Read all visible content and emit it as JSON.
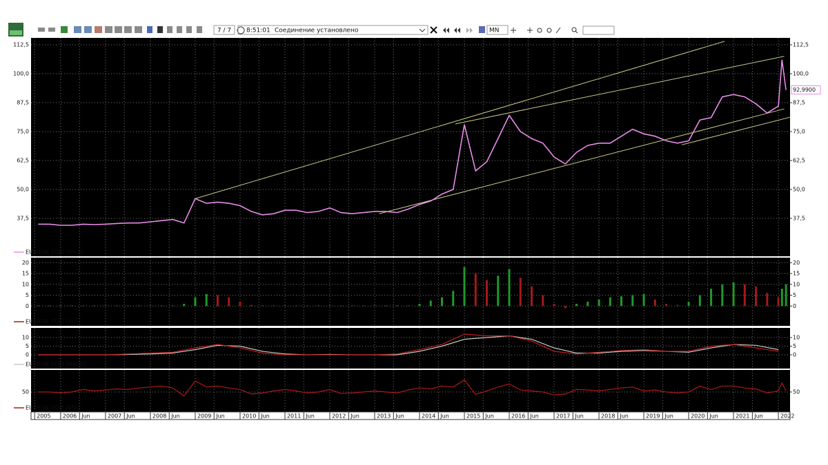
{
  "toolbar": {
    "counter": "7 / 7",
    "time": "8:51:01",
    "status": "Соединение установлено",
    "timeframe": "MN"
  },
  "chart_data": [
    {
      "type": "line",
      "label": "EURRUB_TOM [Price]",
      "x": [
        2005.5,
        2005.75,
        2006,
        2006.25,
        2006.5,
        2006.75,
        2007,
        2007.25,
        2007.5,
        2007.75,
        2008,
        2008.25,
        2008.5,
        2008.75,
        2009,
        2009.25,
        2009.5,
        2009.75,
        2010,
        2010.25,
        2010.5,
        2010.75,
        2011,
        2011.25,
        2011.5,
        2011.75,
        2012,
        2012.25,
        2012.5,
        2012.75,
        2013,
        2013.25,
        2013.5,
        2013.75,
        2014,
        2014.25,
        2014.5,
        2014.75,
        2015,
        2015.25,
        2015.5,
        2015.75,
        2016,
        2016.25,
        2016.5,
        2016.75,
        2017,
        2017.25,
        2017.5,
        2017.75,
        2018,
        2018.25,
        2018.5,
        2018.75,
        2019,
        2019.25,
        2019.5,
        2019.75,
        2020,
        2020.25,
        2020.5,
        2020.75,
        2021,
        2021.25,
        2021.5,
        2021.75,
        2022,
        2022.08,
        2022.17
      ],
      "series": [
        {
          "color": "#e88ce8",
          "values": [
            35,
            35,
            34.5,
            34.5,
            35,
            34.8,
            35,
            35.3,
            35.5,
            35.5,
            36,
            36.5,
            37,
            35.5,
            46,
            44,
            44.5,
            44,
            43,
            40.5,
            39,
            39.5,
            41,
            41,
            40,
            40.5,
            42,
            40,
            39.5,
            40,
            40.5,
            40.5,
            40,
            41.5,
            43.5,
            45,
            48,
            50,
            78,
            58,
            62,
            72,
            82,
            75,
            72,
            70,
            64,
            61,
            66,
            69,
            70,
            70,
            73,
            76,
            74,
            73,
            71,
            70,
            71,
            80,
            81,
            90,
            91,
            90,
            87,
            83,
            86,
            106,
            92.99
          ]
        }
      ],
      "last": {
        "value": 92.99,
        "label": "92,9900"
      },
      "trendlines": [
        {
          "x": [
            2009.0,
            2020.8
          ],
          "y": [
            46,
            114
          ]
        },
        {
          "x": [
            2014.8,
            2022.13
          ],
          "y": [
            78.3,
            107.5
          ]
        },
        {
          "x": [
            2013.1,
            2022.13
          ],
          "y": [
            39.5,
            84.8
          ]
        },
        {
          "x": [
            2019.85,
            2022.26
          ],
          "y": [
            69.3,
            81.2
          ]
        }
      ],
      "trendline_color": "#c8c88a",
      "xlim": [
        2005.34,
        2022.26
      ],
      "xticks": [
        {
          "value": 2005.42,
          "label": "2005"
        },
        2006,
        {
          "value": 2006.42,
          "label": "Jun"
        },
        2007,
        {
          "value": 2007.42,
          "label": "Jun"
        },
        2008,
        {
          "value": 2008.42,
          "label": "Jun"
        },
        2009,
        {
          "value": 2009.42,
          "label": "Jun"
        },
        2010,
        {
          "value": 2010.42,
          "label": "Jun"
        },
        2011,
        {
          "value": 2011.42,
          "label": "Jun"
        },
        2012,
        {
          "value": 2012.42,
          "label": "Jun"
        },
        2013,
        {
          "value": 2013.42,
          "label": "Jun"
        },
        2014,
        {
          "value": 2014.42,
          "label": "Jun"
        },
        2015,
        {
          "value": 2015.42,
          "label": "Jun"
        },
        2016,
        {
          "value": 2016.42,
          "label": "Jun"
        },
        2017,
        {
          "value": 2017.42,
          "label": "Jun"
        },
        2018,
        {
          "value": 2018.42,
          "label": "Jun"
        },
        2019,
        {
          "value": 2019.42,
          "label": "Jun"
        },
        2020,
        {
          "value": 2020.42,
          "label": "Jun"
        },
        2021,
        {
          "value": 2021.42,
          "label": "Jun"
        },
        2022
      ],
      "ylim": [
        26,
        115
      ],
      "yticks": [
        {
          "value": 37.5,
          "label": "37,5"
        },
        {
          "value": 50,
          "label": "50,0"
        },
        {
          "value": 62.5,
          "label": "62,5"
        },
        {
          "value": 75,
          "label": "75,0"
        },
        {
          "value": 87.5,
          "label": "87,5"
        },
        {
          "value": 100,
          "label": "100,0"
        },
        {
          "value": 112.5,
          "label": "112,5"
        }
      ],
      "grid": true
    },
    {
      "type": "bar",
      "label": "EURRUB_TOM [AO]",
      "up_color": "#1f9a2a",
      "down_color": "#a81818",
      "x": [
        2005.5,
        2005.75,
        2006,
        2006.25,
        2006.5,
        2006.75,
        2007,
        2007.25,
        2007.5,
        2007.75,
        2008,
        2008.25,
        2008.5,
        2008.75,
        2009,
        2009.25,
        2009.5,
        2009.75,
        2010,
        2010.25,
        2010.5,
        2010.75,
        2011,
        2011.25,
        2011.5,
        2011.75,
        2012,
        2012.25,
        2012.5,
        2012.75,
        2013,
        2013.25,
        2013.5,
        2013.75,
        2014,
        2014.25,
        2014.5,
        2014.75,
        2015,
        2015.25,
        2015.5,
        2015.75,
        2016,
        2016.25,
        2016.5,
        2016.75,
        2017,
        2017.25,
        2017.5,
        2017.75,
        2018,
        2018.25,
        2018.5,
        2018.75,
        2019,
        2019.25,
        2019.5,
        2019.75,
        2020,
        2020.25,
        2020.5,
        2020.75,
        2021,
        2021.25,
        2021.5,
        2021.75,
        2022,
        2022.08,
        2022.17
      ],
      "values": [
        0.3,
        0.3,
        0.3,
        0.3,
        0.3,
        0.3,
        0.3,
        0.3,
        0.3,
        0.3,
        0.3,
        0.3,
        0.3,
        1,
        4,
        5.5,
        5,
        4,
        2,
        0.5,
        0.3,
        0.3,
        0.3,
        0.3,
        0.3,
        0.3,
        0.3,
        0.3,
        0.3,
        0.3,
        0.3,
        0.3,
        0.3,
        0.3,
        1,
        2.5,
        4,
        7,
        18,
        15,
        12,
        14,
        17,
        13,
        9,
        5,
        1,
        -1,
        1,
        2,
        3,
        4,
        4.5,
        5,
        5.5,
        3,
        1,
        0.5,
        2,
        5,
        8,
        10,
        11,
        10,
        9,
        6,
        4,
        8,
        10
      ],
      "ylim": [
        -5,
        22
      ],
      "yticks": [
        0,
        5,
        10,
        15,
        20
      ],
      "grid": true
    },
    {
      "type": "line",
      "label": "EURRUB_TOM [MACD]",
      "x": [
        2005.5,
        2006,
        2006.5,
        2007,
        2007.5,
        2008,
        2008.5,
        2009,
        2009.5,
        2010,
        2010.5,
        2011,
        2011.5,
        2012,
        2012.5,
        2013,
        2013.5,
        2014,
        2014.5,
        2015,
        2015.5,
        2016,
        2016.5,
        2017,
        2017.5,
        2018,
        2018.5,
        2019,
        2019.5,
        2020,
        2020.5,
        2021,
        2021.5,
        2022
      ],
      "series": [
        {
          "color": "#c8c8c8",
          "values": [
            0,
            0,
            0,
            0,
            0.2,
            0.5,
            1,
            3,
            5.5,
            5,
            2,
            0.5,
            0,
            0.2,
            0,
            0,
            0,
            2,
            5,
            9,
            10,
            11,
            9,
            4,
            1,
            1,
            2,
            2.5,
            2,
            1.5,
            4,
            6,
            5.5,
            3
          ]
        },
        {
          "color": "#c0201c",
          "values": [
            0,
            0,
            0,
            0,
            0.5,
            1,
            1.5,
            4,
            6,
            4,
            1,
            0,
            0,
            0,
            0,
            0,
            0.5,
            3,
            6,
            12,
            11,
            11,
            8,
            2,
            0.5,
            1.5,
            2.5,
            3,
            2,
            2,
            5,
            6,
            4,
            2
          ]
        }
      ],
      "ylim": [
        -6,
        14
      ],
      "yticks": [
        0,
        5,
        10
      ],
      "grid": true
    },
    {
      "type": "line",
      "label": "EURRUB_TOM [RSI]",
      "x": [
        2005.5,
        2005.75,
        2006,
        2006.25,
        2006.5,
        2006.75,
        2007,
        2007.25,
        2007.5,
        2007.75,
        2008,
        2008.25,
        2008.5,
        2008.75,
        2009,
        2009.25,
        2009.5,
        2009.75,
        2010,
        2010.25,
        2010.5,
        2010.75,
        2011,
        2011.25,
        2011.5,
        2011.75,
        2012,
        2012.25,
        2012.5,
        2012.75,
        2013,
        2013.25,
        2013.5,
        2013.75,
        2014,
        2014.25,
        2014.5,
        2014.75,
        2015,
        2015.25,
        2015.5,
        2015.75,
        2016,
        2016.25,
        2016.5,
        2016.75,
        2017,
        2017.25,
        2017.5,
        2017.75,
        2018,
        2018.25,
        2018.5,
        2018.75,
        2019,
        2019.25,
        2019.5,
        2019.75,
        2020,
        2020.25,
        2020.5,
        2020.75,
        2021,
        2021.25,
        2021.5,
        2021.75,
        2022,
        2022.08,
        2022.17
      ],
      "series": [
        {
          "color": "#b01818",
          "values": [
            50,
            50,
            48,
            50,
            55,
            52,
            54,
            56,
            55,
            58,
            60,
            62,
            58,
            42,
            72,
            60,
            62,
            58,
            55,
            46,
            48,
            52,
            55,
            52,
            48,
            50,
            55,
            47,
            48,
            50,
            52,
            50,
            48,
            54,
            58,
            56,
            62,
            60,
            74,
            45,
            52,
            60,
            66,
            54,
            52,
            50,
            44,
            46,
            55,
            54,
            52,
            55,
            58,
            60,
            52,
            54,
            50,
            48,
            50,
            62,
            55,
            62,
            62,
            58,
            56,
            48,
            52,
            68,
            52
          ]
        }
      ],
      "ylim": [
        10,
        90
      ],
      "yticks": [
        50
      ],
      "grid": true
    }
  ]
}
